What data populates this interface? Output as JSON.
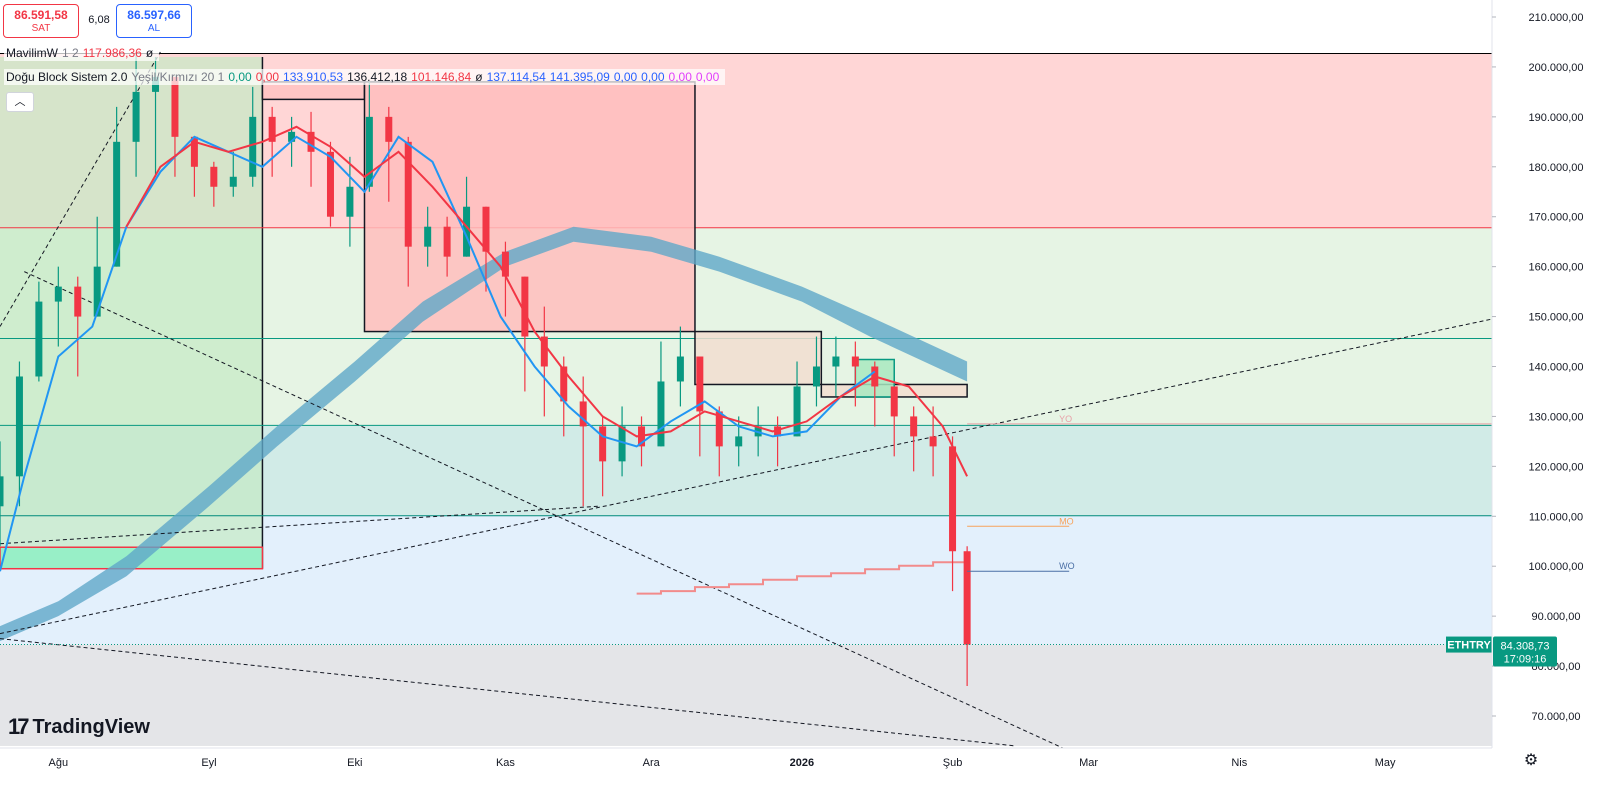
{
  "quote": {
    "sell_price": "86.591,58",
    "sell_label": "SAT",
    "spread": "6,08",
    "buy_price": "86.597,66",
    "buy_label": "AL"
  },
  "legend": {
    "line1": {
      "name": "MavilimW",
      "params": "1 2",
      "value": "117.986,36",
      "suffix": "ø"
    },
    "line2": {
      "name": "Doğu Block Sistem 2.0",
      "params": "Yeşil/Kırmızı 20 1",
      "v1": "0,00",
      "v2": "0,00",
      "v3": "133.910,53",
      "v4": "136.412,18",
      "v5": "101.146,84",
      "v6": "ø",
      "v7": "137.114,54",
      "v8": "141.395,09",
      "v9": "0,00",
      "v10": "0,00",
      "v11": "0,00",
      "v12": "0,00"
    },
    "collapse_glyph": "︿"
  },
  "logo": {
    "mark": "17",
    "text": "TradingView"
  },
  "symbol": {
    "ticker": "ETHTRY",
    "last_price": "84.308,73",
    "countdown": "17:09:16",
    "last_price_value": 84308.73
  },
  "settings_icon": "gear-icon",
  "colors": {
    "up": "#089981",
    "down": "#f23645",
    "ma_blue": "#2196f3",
    "band": "#5fa8c8",
    "accent_blue": "#2962ff"
  },
  "chart_data": {
    "type": "line",
    "yaxis": {
      "position": "right",
      "ticks": [
        "210.000,00",
        "200.000,00",
        "190.000,00",
        "180.000,00",
        "170.000,00",
        "160.000,00",
        "150.000,00",
        "140.000,00",
        "130.000,00",
        "120.000,00",
        "110.000,00",
        "100.000,00",
        "90.000,00",
        "80.000,00",
        "70.000,00"
      ],
      "tick_values": [
        210000,
        200000,
        190000,
        180000,
        170000,
        160000,
        150000,
        140000,
        130000,
        120000,
        110000,
        100000,
        90000,
        80000,
        70000
      ],
      "ylim": [
        64000,
        213000
      ]
    },
    "xaxis": {
      "ticks": [
        "Ağu",
        "Eyl",
        "Eki",
        "Kas",
        "Ara",
        "2026",
        "Şub",
        "Mar",
        "Nis",
        "May"
      ],
      "tick_dates": [
        "2025-08-01",
        "2025-09-01",
        "2025-10-01",
        "2025-11-01",
        "2025-12-01",
        "2026-01-01",
        "2026-02-01",
        "2026-03-01",
        "2026-04-01",
        "2026-05-01"
      ],
      "bold_ticks": [
        "2026"
      ],
      "xlim": [
        "2025-07-20",
        "2026-05-23"
      ]
    },
    "zones": [
      {
        "from": 167800,
        "to": 202700,
        "color": "#ffd6d6"
      },
      {
        "from": 128200,
        "to": 167800,
        "color": "#e6f4e4"
      },
      {
        "from": 110100,
        "to": 128200,
        "color": "#d1ebe7"
      },
      {
        "from": 84300,
        "to": 110100,
        "color": "#e3f0fc"
      },
      {
        "from": 64000,
        "to": 84300,
        "color": "#e4e5e8"
      }
    ],
    "horizontal_levels": [
      {
        "value": 202700,
        "color": "#000000"
      },
      {
        "value": 167800,
        "color": "#f23645"
      },
      {
        "value": 145600,
        "color": "#089981"
      },
      {
        "value": 128200,
        "color": "#089981"
      },
      {
        "value": 110100,
        "color": "#00897b"
      }
    ],
    "level_labels": [
      {
        "text": "YO",
        "value": 128500,
        "from": "2026-02-04",
        "to": "2026-05-23",
        "color": "#e8a0a8"
      },
      {
        "text": "MO",
        "value": 108000,
        "from": "2026-02-04",
        "to": "2026-02-25",
        "color": "#f7a35c"
      },
      {
        "text": "WO",
        "value": 99000,
        "from": "2026-02-04",
        "to": "2026-02-25",
        "color": "#4a6fa5"
      }
    ],
    "blocks": [
      {
        "from": "2025-07-20",
        "to": "2025-09-12",
        "low": 99500,
        "high": 103800,
        "fill": "#8ef0c4",
        "border": "#f23645"
      },
      {
        "from": "2025-09-12",
        "to": "2025-10-03",
        "low": 193500,
        "high": 197000,
        "fill": "#ffc2c2",
        "border": "#131722"
      },
      {
        "from": "2025-10-03",
        "to": "2025-12-10",
        "low": 147000,
        "high": 197000,
        "fill": "#ffbdbd",
        "border": "#131722"
      },
      {
        "from": "2025-12-10",
        "to": "2026-01-05",
        "low": 136400,
        "high": 147000,
        "fill": "#f1ddd0",
        "border": "#131722"
      },
      {
        "from": "2026-01-05",
        "to": "2026-02-04",
        "low": 133900,
        "high": 136400,
        "fill": "#f1ddd0",
        "border": "#131722"
      },
      {
        "from": "2026-01-12",
        "to": "2026-01-20",
        "low": 133900,
        "high": 141400,
        "fill": "#a8e8c0",
        "border": "#089981"
      }
    ],
    "vertical_frames": [
      {
        "from": "2025-07-20",
        "to": "2025-09-12",
        "low": 99500,
        "high": 202000,
        "fill": "#c5e9c5"
      }
    ],
    "trendlines": [
      {
        "from": [
          "2025-07-20",
          148000
        ],
        "to": [
          "2025-08-22",
          203000
        ],
        "style": "dashed"
      },
      {
        "from": [
          "2025-07-25",
          159000
        ],
        "to": [
          "2026-02-25",
          63000
        ],
        "style": "dashed"
      },
      {
        "from": [
          "2025-07-20",
          86500
        ],
        "to": [
          "2026-05-23",
          149500
        ],
        "style": "dashed"
      },
      {
        "from": [
          "2025-07-20",
          85500
        ],
        "to": [
          "2026-02-14",
          64000
        ],
        "style": "dashed"
      },
      {
        "from": [
          "2025-07-20",
          104500
        ],
        "to": [
          "2025-11-20",
          112000
        ],
        "style": "dashed"
      }
    ],
    "series": [
      {
        "name": "price",
        "type": "candlestick",
        "dates": [
          "2025-07-20",
          "2025-07-24",
          "2025-07-28",
          "2025-08-01",
          "2025-08-05",
          "2025-08-09",
          "2025-08-13",
          "2025-08-17",
          "2025-08-21",
          "2025-08-25",
          "2025-08-29",
          "2025-09-02",
          "2025-09-06",
          "2025-09-10",
          "2025-09-14",
          "2025-09-18",
          "2025-09-22",
          "2025-09-26",
          "2025-09-30",
          "2025-10-04",
          "2025-10-08",
          "2025-10-12",
          "2025-10-16",
          "2025-10-20",
          "2025-10-24",
          "2025-10-28",
          "2025-11-01",
          "2025-11-05",
          "2025-11-09",
          "2025-11-13",
          "2025-11-17",
          "2025-11-21",
          "2025-11-25",
          "2025-11-29",
          "2025-12-03",
          "2025-12-07",
          "2025-12-11",
          "2025-12-15",
          "2025-12-19",
          "2025-12-23",
          "2025-12-27",
          "2025-12-31",
          "2026-01-04",
          "2026-01-08",
          "2026-01-12",
          "2026-01-16",
          "2026-01-20",
          "2026-01-24",
          "2026-01-28",
          "2026-02-01",
          "2026-02-04"
        ],
        "close": [
          118000,
          138000,
          153000,
          156000,
          150000,
          160000,
          185000,
          195000,
          198000,
          186000,
          180000,
          176000,
          178000,
          190000,
          185000,
          187000,
          183000,
          170000,
          176000,
          190000,
          185000,
          164000,
          168000,
          162000,
          172000,
          163000,
          158000,
          146000,
          140000,
          133000,
          128000,
          121000,
          128000,
          124000,
          137000,
          142000,
          131000,
          124000,
          126000,
          128000,
          126000,
          136000,
          140000,
          142000,
          140000,
          136000,
          130000,
          126000,
          124000,
          103000,
          84300
        ],
        "high": [
          125000,
          141000,
          157000,
          160000,
          158000,
          170000,
          192000,
          203000,
          202000,
          192000,
          186000,
          181000,
          183000,
          196000,
          192000,
          190000,
          191000,
          185000,
          182000,
          197000,
          192000,
          186000,
          172000,
          170000,
          178000,
          172000,
          165000,
          158000,
          152000,
          142000,
          138000,
          130000,
          132000,
          130000,
          145000,
          148000,
          140000,
          132000,
          130000,
          132000,
          130000,
          141000,
          146000,
          146000,
          145000,
          141000,
          136000,
          132000,
          132000,
          126000,
          104000
        ],
        "low": [
          104000,
          112000,
          137000,
          144000,
          138000,
          150000,
          160000,
          178000,
          178000,
          178000,
          174000,
          172000,
          174000,
          176000,
          178000,
          180000,
          176000,
          168000,
          164000,
          175000,
          173000,
          156000,
          160000,
          158000,
          162000,
          155000,
          150000,
          135000,
          130000,
          126000,
          112000,
          114000,
          118000,
          120000,
          124000,
          132000,
          122000,
          118000,
          120000,
          122000,
          120000,
          126000,
          132000,
          134000,
          132000,
          128000,
          122000,
          119000,
          118000,
          95000,
          76000
        ]
      },
      {
        "name": "",
        "type": "line",
        "color": "#2196f3",
        "dates": [
          "2025-07-20",
          "2025-07-25",
          "2025-08-01",
          "2025-08-08",
          "2025-08-15",
          "2025-08-22",
          "2025-08-29",
          "2025-09-05",
          "2025-09-12",
          "2025-09-19",
          "2025-09-26",
          "2025-10-03",
          "2025-10-10",
          "2025-10-17",
          "2025-10-24",
          "2025-10-31",
          "2025-11-07",
          "2025-11-14",
          "2025-11-21",
          "2025-11-28",
          "2025-12-05",
          "2025-12-12",
          "2025-12-19",
          "2025-12-26",
          "2026-01-02",
          "2026-01-09",
          "2026-01-16"
        ],
        "values": [
          99000,
          118000,
          142000,
          148000,
          168000,
          179000,
          186000,
          183000,
          180000,
          186000,
          182000,
          175000,
          186000,
          181000,
          166000,
          150000,
          140000,
          132000,
          126000,
          124000,
          129000,
          133000,
          128000,
          126000,
          127000,
          134000,
          139000
        ]
      },
      {
        "name": "",
        "type": "line",
        "color": "#f23645",
        "dates": [
          "2025-08-15",
          "2025-08-22",
          "2025-08-29",
          "2025-09-05",
          "2025-09-12",
          "2025-09-19",
          "2025-09-26",
          "2025-10-03",
          "2025-10-10",
          "2025-10-17",
          "2025-10-24",
          "2025-10-31",
          "2025-11-07",
          "2025-11-14",
          "2025-11-21",
          "2025-11-28",
          "2025-12-05",
          "2025-12-12",
          "2025-12-19",
          "2025-12-26",
          "2026-01-02",
          "2026-01-09",
          "2026-01-16",
          "2026-01-23",
          "2026-01-30",
          "2026-02-04"
        ],
        "values": [
          168000,
          180000,
          185000,
          183000,
          185000,
          188000,
          184000,
          178000,
          183000,
          176000,
          168000,
          160000,
          147000,
          138000,
          130000,
          126000,
          127000,
          131000,
          129000,
          127000,
          129000,
          134000,
          138000,
          136000,
          128000,
          118000
        ]
      },
      {
        "name": "",
        "type": "band",
        "color": "#5fa8c8",
        "dates": [
          "2025-07-20",
          "2025-08-01",
          "2025-08-15",
          "2025-09-01",
          "2025-09-15",
          "2025-10-01",
          "2025-10-15",
          "2025-11-01",
          "2025-11-15",
          "2025-12-01",
          "2025-12-15",
          "2026-01-01",
          "2026-01-15",
          "2026-02-04"
        ],
        "upper": [
          88000,
          93000,
          102000,
          116000,
          128000,
          141000,
          153000,
          163000,
          168000,
          166000,
          162000,
          156000,
          150000,
          141000
        ],
        "lower": [
          85000,
          90000,
          98000,
          112000,
          124000,
          137000,
          149000,
          160000,
          165000,
          163000,
          159000,
          153000,
          146000,
          137000
        ]
      },
      {
        "name": "",
        "type": "step",
        "color": "#f28b8b",
        "dates": [
          "2025-11-28",
          "2025-12-03",
          "2025-12-10",
          "2025-12-17",
          "2025-12-24",
          "2025-12-31",
          "2026-01-07",
          "2026-01-14",
          "2026-01-21",
          "2026-01-28",
          "2026-02-04"
        ],
        "values": [
          94500,
          95000,
          95800,
          96400,
          97300,
          98000,
          98600,
          99400,
          100100,
          100800,
          101100
        ]
      }
    ]
  }
}
